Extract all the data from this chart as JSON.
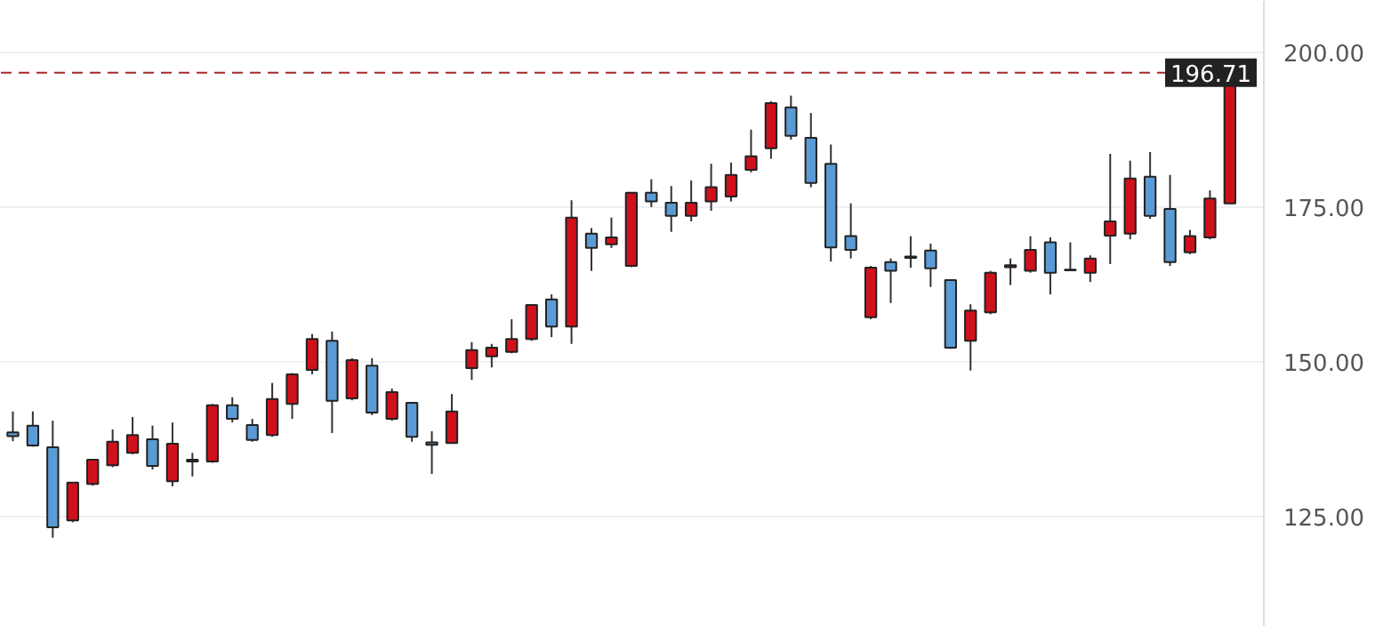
{
  "chart_data": {
    "type": "candlestick",
    "categories": [
      null,
      null,
      null,
      null,
      null,
      null,
      null,
      null,
      null,
      null,
      null,
      null,
      null,
      null,
      null,
      null,
      null,
      null,
      null,
      null,
      null,
      null,
      null,
      null,
      null,
      null,
      null,
      null,
      null,
      null,
      null,
      null,
      null,
      null,
      null,
      null,
      null,
      null,
      null,
      null,
      null,
      null,
      null,
      null,
      null,
      null,
      null,
      null,
      null,
      null,
      null,
      null,
      null,
      null,
      null,
      null,
      null,
      null,
      null,
      null,
      null,
      null
    ],
    "ohlc": [
      [
        138.6,
        142.0,
        137.2,
        138.0
      ],
      [
        139.7,
        142.0,
        136.3,
        136.5
      ],
      [
        136.2,
        140.5,
        121.6,
        123.3
      ],
      [
        124.4,
        130.6,
        124.1,
        130.5
      ],
      [
        130.3,
        134.3,
        130.0,
        134.2
      ],
      [
        133.3,
        139.1,
        133.0,
        137.1
      ],
      [
        135.3,
        141.1,
        135.1,
        138.2
      ],
      [
        137.5,
        139.7,
        132.6,
        133.2
      ],
      [
        130.7,
        140.2,
        129.9,
        136.8
      ],
      [
        133.9,
        135.3,
        131.5,
        134.2
      ],
      [
        133.9,
        143.2,
        133.7,
        143.0
      ],
      [
        143.0,
        144.3,
        140.2,
        140.8
      ],
      [
        139.8,
        140.8,
        137.1,
        137.4
      ],
      [
        138.2,
        146.6,
        137.9,
        144.0
      ],
      [
        143.2,
        148.2,
        140.8,
        148.0
      ],
      [
        148.7,
        154.5,
        148.0,
        153.7
      ],
      [
        153.4,
        154.9,
        138.5,
        143.7
      ],
      [
        144.1,
        150.6,
        143.8,
        150.3
      ],
      [
        149.4,
        150.6,
        141.4,
        141.8
      ],
      [
        140.8,
        145.7,
        140.5,
        145.1
      ],
      [
        143.4,
        143.5,
        137.1,
        137.9
      ],
      [
        137.0,
        138.8,
        131.9,
        136.6
      ],
      [
        136.9,
        144.8,
        136.9,
        142.0
      ],
      [
        149.0,
        153.2,
        147.1,
        151.9
      ],
      [
        150.9,
        152.9,
        149.1,
        152.3
      ],
      [
        151.6,
        156.9,
        151.4,
        153.7
      ],
      [
        153.7,
        159.3,
        153.4,
        159.2
      ],
      [
        160.1,
        160.9,
        154.0,
        155.7
      ],
      [
        155.7,
        176.1,
        152.9,
        173.3
      ],
      [
        170.7,
        171.6,
        164.7,
        168.4
      ],
      [
        169.0,
        173.3,
        168.4,
        170.1
      ],
      [
        165.5,
        177.4,
        165.3,
        177.3
      ],
      [
        177.3,
        179.5,
        175.0,
        175.9
      ],
      [
        175.7,
        178.4,
        171.0,
        173.6
      ],
      [
        173.6,
        179.3,
        172.7,
        175.7
      ],
      [
        175.9,
        182.0,
        174.4,
        178.2
      ],
      [
        176.7,
        182.2,
        175.9,
        180.2
      ],
      [
        181.0,
        187.5,
        180.6,
        183.2
      ],
      [
        184.5,
        192.1,
        182.8,
        191.8
      ],
      [
        191.1,
        193.0,
        185.9,
        186.5
      ],
      [
        186.2,
        190.2,
        178.2,
        178.9
      ],
      [
        182.0,
        185.1,
        166.2,
        168.5
      ],
      [
        170.3,
        175.6,
        166.7,
        168.1
      ],
      [
        157.2,
        165.5,
        156.9,
        165.2
      ],
      [
        166.1,
        166.7,
        159.5,
        164.7
      ],
      [
        167.0,
        170.3,
        165.2,
        166.8
      ],
      [
        168.0,
        169.1,
        162.1,
        165.1
      ],
      [
        163.2,
        163.3,
        152.1,
        152.3
      ],
      [
        153.4,
        159.3,
        148.6,
        158.3
      ],
      [
        158.0,
        164.7,
        157.7,
        164.4
      ],
      [
        165.3,
        166.7,
        162.4,
        165.6
      ],
      [
        164.7,
        170.3,
        164.4,
        168.1
      ],
      [
        169.3,
        170.1,
        160.9,
        164.4
      ],
      [
        164.9,
        169.3,
        164.7,
        164.8
      ],
      [
        164.4,
        167.2,
        162.9,
        166.7
      ],
      [
        170.4,
        183.6,
        165.8,
        172.7
      ],
      [
        170.7,
        182.5,
        169.8,
        179.6
      ],
      [
        179.9,
        183.9,
        173.1,
        173.6
      ],
      [
        174.7,
        180.2,
        165.5,
        166.1
      ],
      [
        167.7,
        171.3,
        167.4,
        170.3
      ],
      [
        170.1,
        177.7,
        169.8,
        176.4
      ],
      [
        175.6,
        196.71,
        175.6,
        196.71
      ]
    ],
    "colors": [
      "#5b9bd5",
      "#5b9bd5",
      "#5b9bd5",
      "#d0111b",
      "#d0111b",
      "#d0111b",
      "#d0111b",
      "#5b9bd5",
      "#d0111b",
      "#d0111b",
      "#d0111b",
      "#5b9bd5",
      "#5b9bd5",
      "#d0111b",
      "#d0111b",
      "#d0111b",
      "#5b9bd5",
      "#d0111b",
      "#5b9bd5",
      "#d0111b",
      "#5b9bd5",
      "#5b9bd5",
      "#d0111b",
      "#d0111b",
      "#d0111b",
      "#d0111b",
      "#d0111b",
      "#5b9bd5",
      "#d0111b",
      "#5b9bd5",
      "#d0111b",
      "#d0111b",
      "#5b9bd5",
      "#5b9bd5",
      "#d0111b",
      "#d0111b",
      "#d0111b",
      "#d0111b",
      "#d0111b",
      "#5b9bd5",
      "#5b9bd5",
      "#5b9bd5",
      "#5b9bd5",
      "#d0111b",
      "#5b9bd5",
      "#5b9bd5",
      "#5b9bd5",
      "#5b9bd5",
      "#d0111b",
      "#d0111b",
      "#d0111b",
      "#d0111b",
      "#5b9bd5",
      "#5b9bd5",
      "#d0111b",
      "#d0111b",
      "#d0111b",
      "#5b9bd5",
      "#5b9bd5",
      "#d0111b",
      "#d0111b",
      "#d0111b"
    ],
    "ylim": [
      107.2,
      208.3
    ],
    "yticks": [
      {
        "value": 125,
        "label": "125.00"
      },
      {
        "value": 150,
        "label": "150.00"
      },
      {
        "value": 175,
        "label": "175.00"
      },
      {
        "value": 200,
        "label": "200.00"
      }
    ],
    "ref_lines": [
      {
        "axis": "y",
        "value": 196.71,
        "label": "196.71",
        "color": "#a52a2a",
        "line_style": "dashed"
      }
    ],
    "grid": "y"
  }
}
